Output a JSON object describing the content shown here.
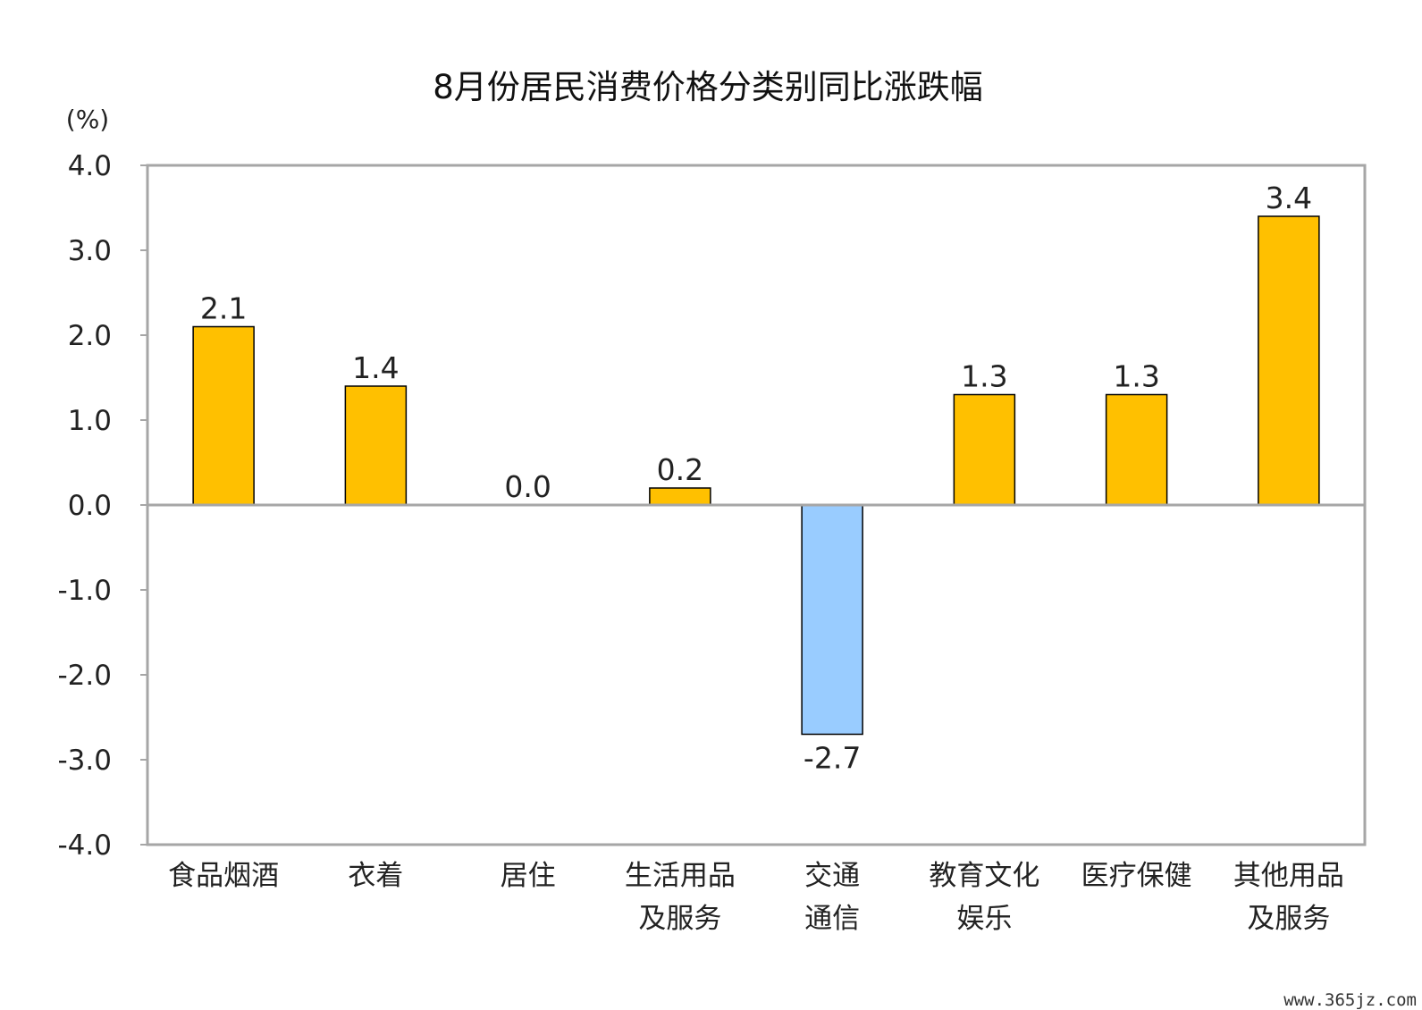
{
  "chart_data": {
    "type": "bar",
    "title": "8月份居民消费价格分类别同比涨跌幅",
    "unit_label": "(%)",
    "categories": [
      [
        "食品烟酒"
      ],
      [
        "衣着"
      ],
      [
        "居住"
      ],
      [
        "生活用品",
        "及服务"
      ],
      [
        "交通",
        "通信"
      ],
      [
        "教育文化",
        "娱乐"
      ],
      [
        "医疗保健"
      ],
      [
        "其他用品",
        "及服务"
      ]
    ],
    "values": [
      2.1,
      1.4,
      0.0,
      0.2,
      -2.7,
      1.3,
      1.3,
      3.4
    ],
    "value_labels": [
      "2.1",
      "1.4",
      "0.0",
      "0.2",
      "-2.7",
      "1.3",
      "1.3",
      "3.4"
    ],
    "ylim": [
      -4.0,
      4.0
    ],
    "yticks": [
      "4.0",
      "3.0",
      "2.0",
      "1.0",
      "0.0",
      "-1.0",
      "-2.0",
      "-3.0",
      "-4.0"
    ],
    "grid": false,
    "colors": {
      "positive": "#FFC000",
      "negative": "#99CCFF",
      "frame": "#a6a6a6",
      "bar_outline": "#000000"
    }
  },
  "watermark": "www.365jz.com"
}
